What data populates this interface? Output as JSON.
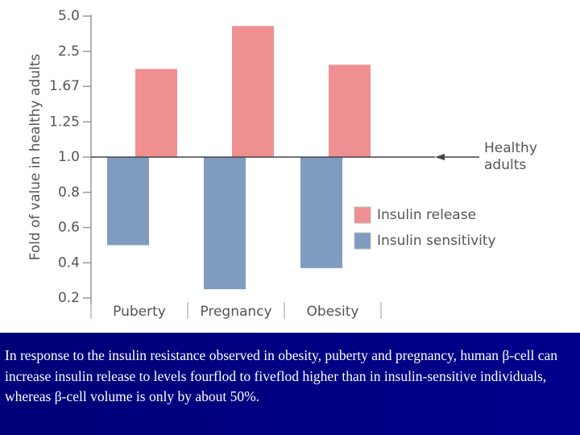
{
  "chart_data": {
    "type": "bar",
    "y_label": "Fold of value in healthy adults",
    "yscale": "fold",
    "categories": [
      "Puberty",
      "Pregnancy",
      "Obesity"
    ],
    "series": [
      {
        "name": "Insulin release",
        "color": "#ef8f92",
        "values": [
          2.0,
          3.9,
          2.1
        ]
      },
      {
        "name": "Insulin sensitivity",
        "color": "#7f9bbf",
        "values": [
          0.5,
          0.25,
          0.37
        ]
      }
    ],
    "ylim": [
      0.2,
      5
    ],
    "yticks": [
      0.2,
      0.4,
      0.6,
      0.8,
      {
        "value": 1,
        "label": "1.0"
      },
      1.25,
      1.67,
      2.5,
      {
        "value": 5,
        "label": "5.0"
      }
    ],
    "annotation": {
      "lines": [
        "Healthy",
        "adults"
      ],
      "value": 1
    },
    "legend": "right"
  },
  "caption": "In response to the insulin resistance observed in obesity, puberty and pregnancy, human β-cell can increase insulin release to levels fourflod to fiveflod higher than in insulin-sensitive individuals, whereas β-cell volume is only by about 50%."
}
